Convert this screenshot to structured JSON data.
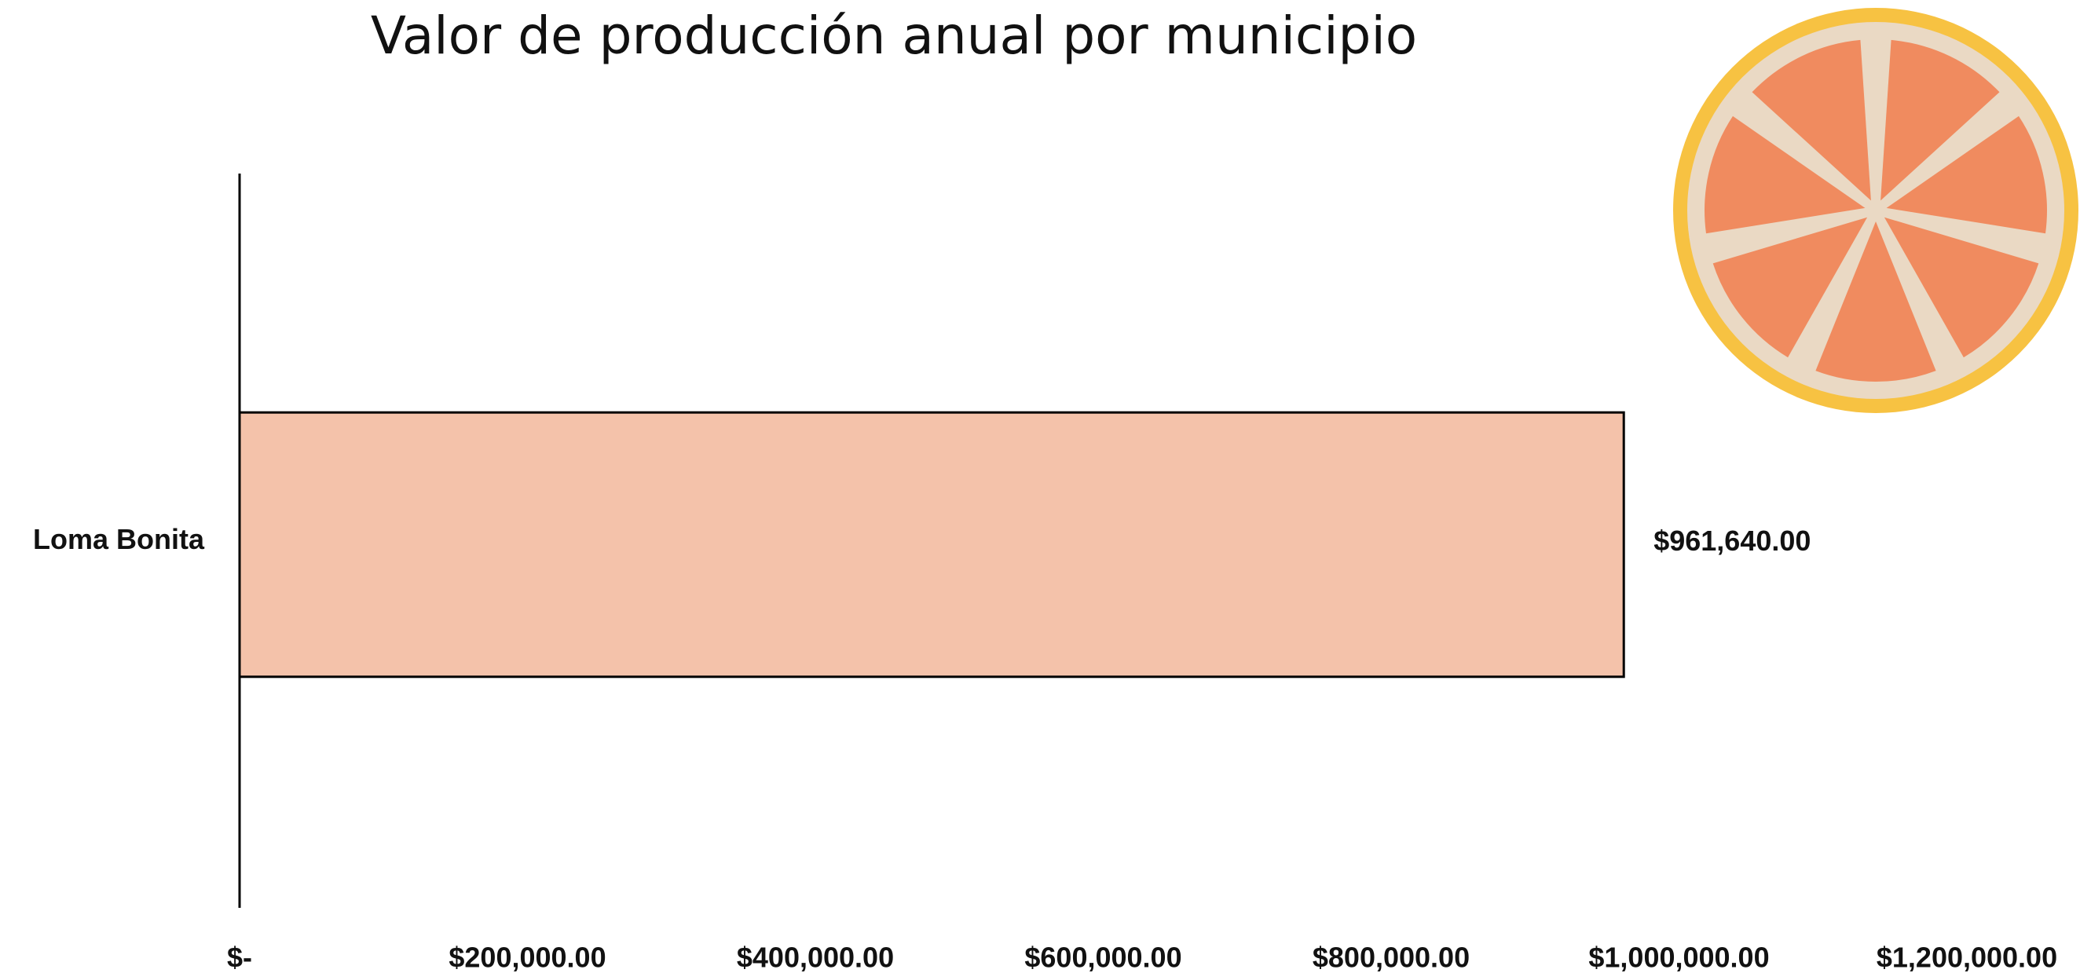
{
  "chart_data": {
    "type": "barh",
    "title": "Valor de producción anual por municipio",
    "categories": [
      "Loma Bonita"
    ],
    "values": [
      961640
    ],
    "value_labels": [
      "$961,640.00"
    ],
    "color": "#f4c2aa",
    "xlim": [
      0,
      1200000
    ],
    "xticks": [
      {
        "value": 0,
        "label": "$-"
      },
      {
        "value": 200000,
        "label": "$200,000.00"
      },
      {
        "value": 400000,
        "label": "$400,000.00"
      },
      {
        "value": 600000,
        "label": "$600,000.00"
      },
      {
        "value": 800000,
        "label": "$800,000.00"
      },
      {
        "value": 1000000,
        "label": "$1,000,000.00"
      },
      {
        "value": 1200000,
        "label": "$1,200,000.00"
      }
    ],
    "grid": false
  }
}
